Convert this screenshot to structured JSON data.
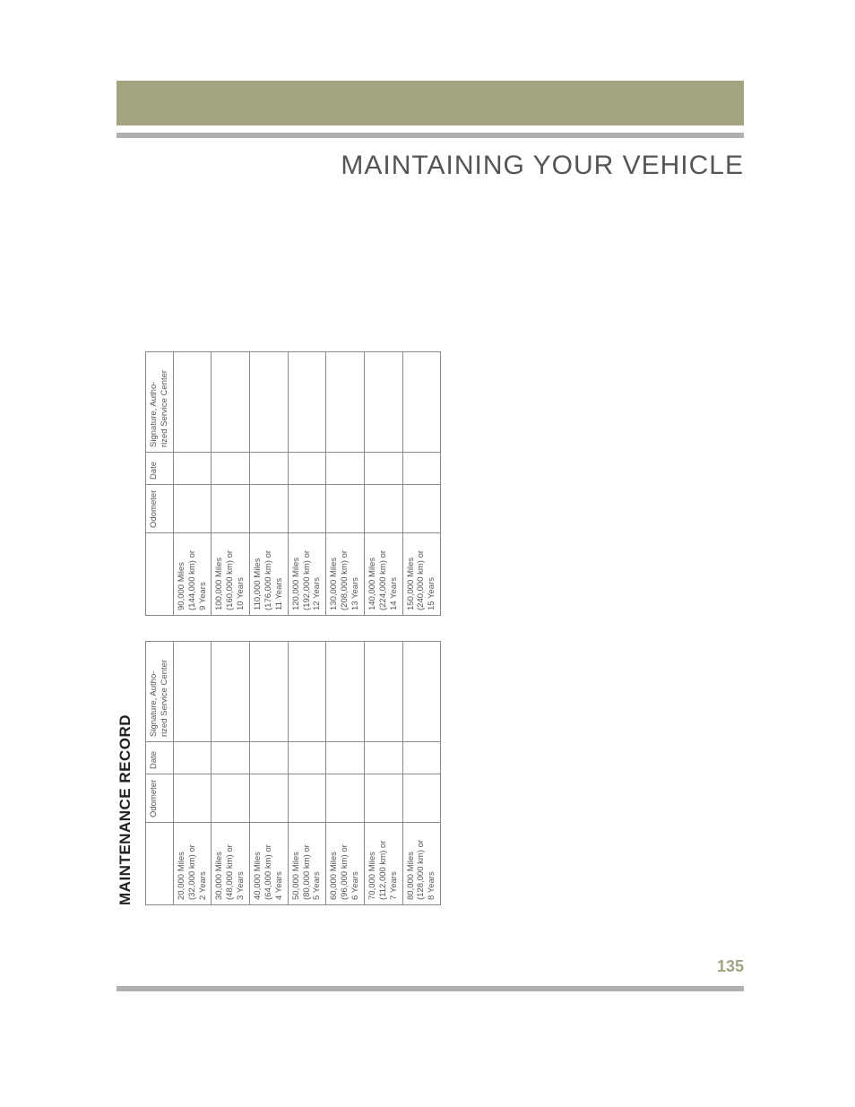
{
  "page": {
    "section_title": "MAINTAINING YOUR VEHICLE",
    "record_heading": "MAINTENANCE RECORD",
    "page_number": "135",
    "colors": {
      "olive": "#a3a380",
      "gray_bar": "#b0b0b0",
      "text_gray": "#555555",
      "border": "#888888"
    },
    "headers": {
      "odometer": "Odometer",
      "date": "Date",
      "signature_line1": "Signature, Autho-",
      "signature_line2": "rized Service Center"
    },
    "table1": [
      {
        "l1": "20,000 Miles",
        "l2": "(32,000 km) or",
        "l3": "2 Years"
      },
      {
        "l1": "30,000 Miles",
        "l2": "(48,000 km) or",
        "l3": "3 Years"
      },
      {
        "l1": "40,000 Miles",
        "l2": "(64,000 km) or",
        "l3": "4 Years"
      },
      {
        "l1": "50,000 Miles",
        "l2": "(80,000 km) or",
        "l3": "5 Years"
      },
      {
        "l1": "60,000 Miles",
        "l2": "(96,000 km) or",
        "l3": "6 Years"
      },
      {
        "l1": "70,000 Miles",
        "l2": "(112,000 km) or",
        "l3": "7 Years"
      },
      {
        "l1": "80,000 Miles",
        "l2": "(128,000 km) or",
        "l3": "8 Years"
      }
    ],
    "table2": [
      {
        "l1": "90,000 Miles",
        "l2": "(144,000 km) or",
        "l3": "9 Years"
      },
      {
        "l1": "100,000 Miles",
        "l2": "(160,000 km) or",
        "l3": "10 Years"
      },
      {
        "l1": "110,000 Miles",
        "l2": "(176,000 km) or",
        "l3": "11 Years"
      },
      {
        "l1": "120,000 Miles",
        "l2": "(192,000 km) or",
        "l3": "12 Years"
      },
      {
        "l1": "130,000 Miles",
        "l2": "(208,000 km) or",
        "l3": "13 Years"
      },
      {
        "l1": "140,000 Miles",
        "l2": "(224,000 km) or",
        "l3": "14 Years"
      },
      {
        "l1": "150,000 Miles",
        "l2": "(240,000 km) or",
        "l3": "15 Years"
      }
    ]
  }
}
